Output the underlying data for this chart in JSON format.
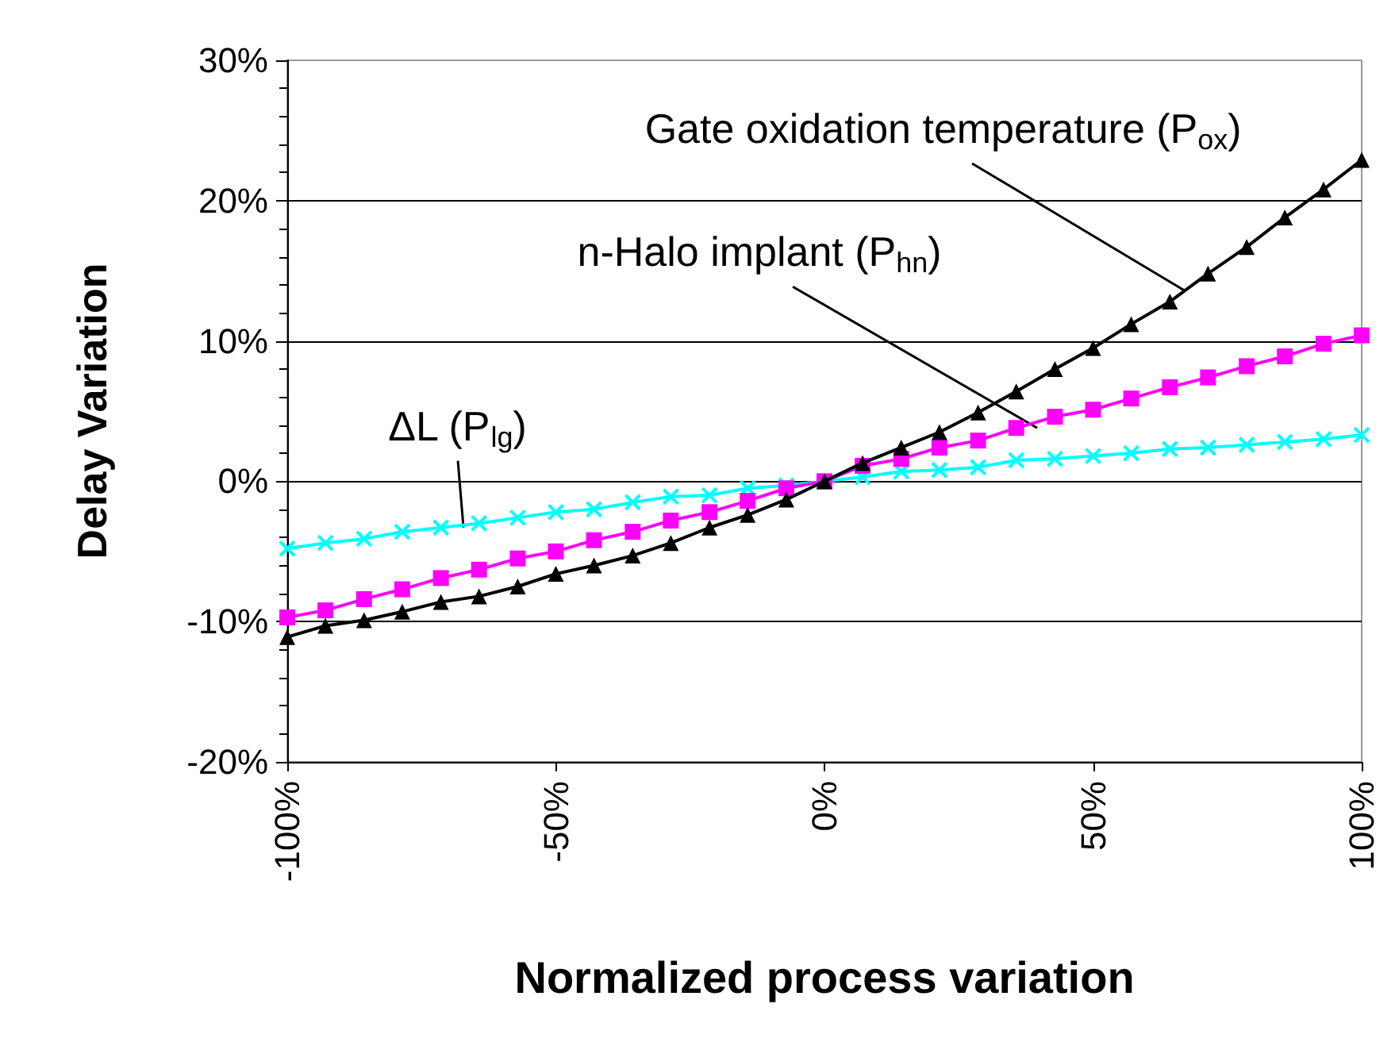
{
  "chart_data": {
    "type": "line",
    "xlabel": "Normalized process variation",
    "ylabel": "Delay Variation",
    "x": [
      -100,
      -92.9,
      -85.7,
      -78.6,
      -71.4,
      -64.3,
      -57.1,
      -50,
      -42.9,
      -35.7,
      -28.6,
      -21.4,
      -14.3,
      -7.1,
      0,
      7.1,
      14.3,
      21.4,
      28.6,
      35.7,
      42.9,
      50,
      57.1,
      64.3,
      71.4,
      78.6,
      85.7,
      92.9,
      100
    ],
    "series": [
      {
        "color": "#000000",
        "marker": "triangle",
        "values": [
          -11.1,
          -10.3,
          -9.9,
          -9.3,
          -8.6,
          -8.2,
          -7.5,
          -6.6,
          -6.0,
          -5.3,
          -4.4,
          -3.3,
          -2.4,
          -1.3,
          0,
          1.3,
          2.4,
          3.5,
          4.9,
          6.4,
          8.0,
          9.5,
          11.2,
          12.8,
          14.8,
          16.7,
          18.8,
          20.8,
          22.9
        ]
      },
      {
        "color": "#ff00ff",
        "marker": "square",
        "values": [
          -9.7,
          -9.2,
          -8.4,
          -7.7,
          -6.9,
          -6.3,
          -5.5,
          -5.0,
          -4.2,
          -3.6,
          -2.8,
          -2.2,
          -1.4,
          -0.5,
          0,
          1.1,
          1.6,
          2.4,
          2.9,
          3.8,
          4.6,
          5.1,
          5.9,
          6.7,
          7.4,
          8.2,
          8.9,
          9.8,
          10.4
        ]
      },
      {
        "color": "#00ffff",
        "marker": "cross",
        "values": [
          -4.8,
          -4.4,
          -4.1,
          -3.6,
          -3.3,
          -3.0,
          -2.6,
          -2.2,
          -2.0,
          -1.5,
          -1.1,
          -1.0,
          -0.5,
          -0.3,
          0,
          0.3,
          0.7,
          0.8,
          1.0,
          1.5,
          1.6,
          1.8,
          2.0,
          2.3,
          2.4,
          2.6,
          2.8,
          3.0,
          3.3
        ]
      }
    ],
    "xlim": [
      -100,
      100
    ],
    "xticks": [
      {
        "value": -100,
        "label": "-100%"
      },
      {
        "value": -50,
        "label": "-50%"
      },
      {
        "value": 0,
        "label": "0%"
      },
      {
        "value": 50,
        "label": "50%"
      },
      {
        "value": 100,
        "label": "100%"
      }
    ],
    "ylim": [
      -20,
      30
    ],
    "yticks": [
      {
        "value": -20,
        "label": "-20%"
      },
      {
        "value": -10,
        "label": "-10%"
      },
      {
        "value": 0,
        "label": "0%"
      },
      {
        "value": 10,
        "label": "10%"
      },
      {
        "value": 20,
        "label": "20%"
      },
      {
        "value": 30,
        "label": "30%"
      }
    ],
    "grid": "y",
    "line_style": "solid",
    "annotations": [
      {
        "text": "Gate oxidation temperature (P$_{ox}$)",
        "x": 67,
        "y": 13.6
      },
      {
        "text": "n-Halo implant (P$_{hn}$)",
        "x": 39.6,
        "y": 3.8
      },
      {
        "text": "ΔL (P$_{lg}$)",
        "x": -67.2,
        "y": -3.3
      }
    ]
  }
}
